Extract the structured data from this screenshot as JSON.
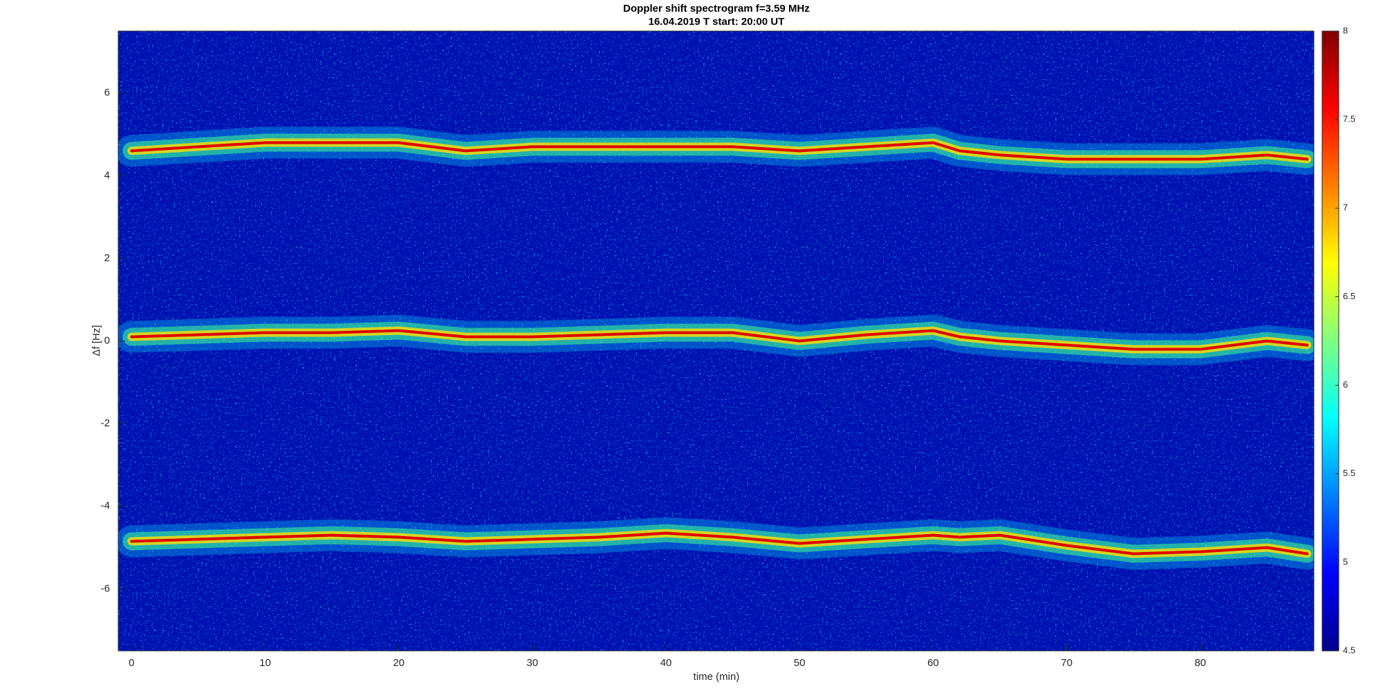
{
  "chart_data": {
    "type": "spectrogram",
    "title": "Doppler shift spectrogram f=3.59 MHz",
    "subtitle": "16.04.2019    T start: 20:00 UT",
    "xlabel": "time (min)",
    "ylabel": "Δf [Hz]",
    "xlim": [
      -1,
      88.5
    ],
    "xticks": [
      0,
      10,
      20,
      30,
      40,
      50,
      60,
      70,
      80
    ],
    "ylim": [
      -7.5,
      7.5
    ],
    "yticks": [
      -6,
      -4,
      -2,
      0,
      2,
      4,
      6
    ],
    "clim": [
      4.5,
      8
    ],
    "cticks": [
      4.5,
      5,
      5.5,
      6,
      6.5,
      7,
      7.5,
      8
    ],
    "colormap": "jet",
    "x": [
      0,
      5,
      10,
      15,
      20,
      25,
      30,
      35,
      40,
      45,
      50,
      55,
      60,
      62,
      65,
      70,
      75,
      80,
      85,
      88
    ],
    "series": [
      {
        "color": "#e00000",
        "values": [
          4.6,
          4.7,
          4.8,
          4.8,
          4.8,
          4.6,
          4.7,
          4.7,
          4.7,
          4.7,
          4.6,
          4.7,
          4.8,
          4.6,
          4.5,
          4.4,
          4.4,
          4.4,
          4.5,
          4.4
        ]
      },
      {
        "color": "#e00000",
        "values": [
          0.1,
          0.15,
          0.2,
          0.2,
          0.25,
          0.1,
          0.1,
          0.15,
          0.2,
          0.2,
          0.0,
          0.15,
          0.25,
          0.1,
          0.0,
          -0.1,
          -0.2,
          -0.2,
          0.0,
          -0.1
        ]
      },
      {
        "color": "#e00000",
        "values": [
          -4.85,
          -4.8,
          -4.75,
          -4.7,
          -4.75,
          -4.85,
          -4.8,
          -4.75,
          -4.65,
          -4.75,
          -4.9,
          -4.8,
          -4.7,
          -4.75,
          -4.7,
          -4.95,
          -5.15,
          -5.1,
          -5.0,
          -5.15
        ]
      }
    ]
  }
}
